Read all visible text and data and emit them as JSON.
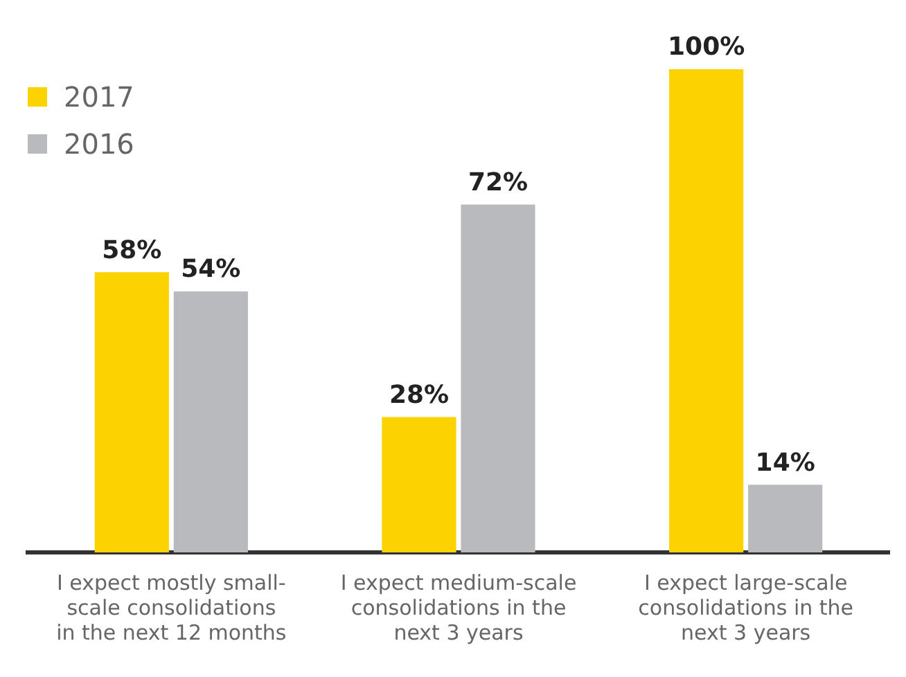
{
  "chart_data": {
    "type": "bar",
    "categories": [
      "I expect mostly small-scale consolidations in the next 12 months",
      "I expect medium-scale consolidations in the next 3 years",
      "I expect large-scale consolidations in the next 3 years"
    ],
    "series": [
      {
        "name": "2017",
        "color": "#fcd200",
        "values": [
          58,
          28,
          100
        ],
        "value_labels": [
          "58%",
          "28%",
          "100%"
        ]
      },
      {
        "name": "2016",
        "color": "#b9babe",
        "values": [
          54,
          72,
          14
        ],
        "value_labels": [
          "54%",
          "72%",
          "14%"
        ]
      }
    ],
    "legend": "top left",
    "grid": false
  }
}
